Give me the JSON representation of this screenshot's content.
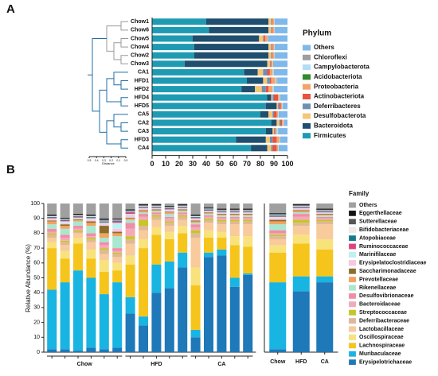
{
  "chart_data": [
    {
      "type": "barh",
      "stacked": true,
      "panel": "A",
      "legend_title": "Phylum",
      "categories": [
        "Chow1",
        "Chow6",
        "Chow5",
        "Chow4",
        "Chow2",
        "Chow3",
        "CA1",
        "HFD1",
        "HFD2",
        "HFD4",
        "HFD5",
        "CA5",
        "CA2",
        "CA3",
        "HFD3",
        "CA4"
      ],
      "xlim": [
        0,
        100
      ],
      "xticks": [
        0,
        10,
        20,
        30,
        40,
        50,
        60,
        70,
        80,
        90,
        100
      ],
      "dendrogram": {
        "xlabel": "Distance",
        "xlim": [
          0.5,
          0
        ],
        "xticks": [
          0.5,
          0.4,
          0.3,
          0.2,
          0.1,
          {
            "value": 0,
            "label": "0.0"
          }
        ]
      },
      "series": [
        {
          "name": "Firmicutes",
          "color": "#1e9bb3",
          "values": [
            40,
            42,
            30,
            31,
            31,
            24,
            68,
            70,
            66,
            85,
            84,
            80,
            88,
            84,
            62,
            73
          ]
        },
        {
          "name": "Bacteroidota",
          "color": "#1f4e6e",
          "values": [
            46,
            44,
            49,
            55,
            55,
            61,
            10,
            12,
            10,
            3,
            8,
            6,
            4,
            5,
            22,
            12
          ]
        },
        {
          "name": "Desulfobacterota",
          "color": "#f6c676",
          "values": [
            2,
            2,
            3,
            2,
            2,
            2,
            4,
            3,
            5,
            1,
            1,
            3,
            2,
            1,
            3,
            3
          ]
        },
        {
          "name": "Deferribacteres",
          "color": "#6d90b3",
          "values": [
            0.5,
            0.5,
            0.5,
            0.5,
            0.5,
            0.5,
            3,
            2,
            3,
            1,
            1,
            1,
            1,
            0.5,
            2,
            1
          ]
        },
        {
          "name": "Actinobacteriota",
          "color": "#e8533f",
          "values": [
            0.5,
            0.5,
            1,
            0.5,
            0.5,
            0.5,
            2,
            1,
            2,
            3,
            1,
            2,
            1,
            0.5,
            3,
            3
          ]
        },
        {
          "name": "Proteobacteria",
          "color": "#f4a46a",
          "values": [
            1,
            1,
            1.5,
            1,
            1,
            1,
            2,
            3,
            3,
            1,
            1,
            1,
            1,
            1,
            2,
            1
          ]
        },
        {
          "name": "Acidobacteriota",
          "color": "#2e8b2e",
          "values": [
            0,
            0,
            0,
            0,
            0,
            0,
            0,
            0,
            0,
            0,
            0,
            0,
            0,
            0,
            0,
            0
          ]
        },
        {
          "name": "Campylobacterota",
          "color": "#b3dcf5",
          "values": [
            0.5,
            0.5,
            0.5,
            0.5,
            0.5,
            0.5,
            1,
            1,
            1,
            0.5,
            0.5,
            0.5,
            0.5,
            1,
            0.5,
            0.5
          ]
        },
        {
          "name": "Chloroflexi",
          "color": "#9e9e9e",
          "values": [
            0.5,
            0.5,
            0.5,
            0.5,
            0.5,
            0.5,
            0.5,
            0.5,
            0,
            0,
            0,
            0,
            0,
            0,
            0,
            0
          ]
        },
        {
          "name": "Others",
          "color": "#7fb8ea",
          "values": [
            9,
            9,
            14,
            9,
            9,
            10,
            9.5,
            7.5,
            10,
            5.5,
            3.5,
            6.5,
            2.5,
            7,
            5.5,
            6.5
          ]
        }
      ]
    },
    {
      "type": "bar",
      "stacked": true,
      "panel": "B",
      "legend_title": "Family",
      "ylabel": "Relative Abundance (%)",
      "categories": [
        null,
        null,
        null,
        null,
        null,
        null,
        null,
        null,
        null,
        null,
        null,
        null,
        null,
        null,
        null,
        null
      ],
      "group_labels": [
        "Chow",
        "HFD",
        "CA"
      ],
      "ylim": [
        0,
        100
      ],
      "yticks": [
        0,
        10,
        20,
        30,
        40,
        50,
        60,
        70,
        80,
        90,
        100
      ],
      "series": [
        {
          "name": "Erysipelotrichaceae",
          "color": "#1f78b8",
          "values": [
            2,
            2,
            1,
            3,
            2,
            3,
            26,
            18,
            40,
            43,
            57,
            10,
            64,
            65,
            44,
            52
          ]
        },
        {
          "name": "Muribaculaceae",
          "color": "#18b4e2",
          "values": [
            40,
            45,
            54,
            47,
            37,
            44,
            11,
            6,
            19,
            18,
            10,
            5,
            3,
            4,
            6,
            1
          ]
        },
        {
          "name": "Lachnospiraceae",
          "color": "#f6c51c",
          "values": [
            28,
            16,
            18,
            13,
            15,
            8,
            22,
            46,
            20,
            15,
            13,
            30,
            10,
            8,
            22,
            18
          ]
        },
        {
          "name": "Oscillospiraceae",
          "color": "#f8e27c",
          "values": [
            4,
            5,
            4,
            6,
            8,
            5,
            6,
            6,
            5,
            5,
            5,
            12,
            5,
            4,
            6,
            7
          ]
        },
        {
          "name": "Lactobacillaceae",
          "color": "#f8ca9c",
          "values": [
            3,
            4,
            3,
            5,
            4,
            4,
            8,
            6,
            5,
            4,
            4,
            20,
            5,
            5,
            8,
            8
          ]
        },
        {
          "name": "Deferribacteraceae",
          "color": "#dfb996",
          "values": [
            2,
            2,
            1,
            2,
            3,
            2,
            3,
            3,
            2,
            2,
            2,
            3,
            2,
            2,
            2,
            2
          ]
        },
        {
          "name": "Streptococcaceae",
          "color": "#c6c624",
          "values": [
            1,
            1,
            1,
            1,
            1,
            1,
            2,
            4,
            1,
            1,
            1,
            2,
            1,
            1,
            1,
            1
          ]
        },
        {
          "name": "Bacteroidaceae",
          "color": "#f4a9bb",
          "values": [
            1,
            2,
            1,
            1,
            2,
            1,
            5,
            2,
            1,
            2,
            1,
            2,
            1,
            1,
            1,
            1
          ]
        },
        {
          "name": "Desulfovibrionaceae",
          "color": "#ef8ea7",
          "values": [
            2,
            2,
            2,
            2,
            2,
            2,
            4,
            2,
            1,
            1,
            1,
            2,
            1,
            1,
            1,
            1
          ]
        },
        {
          "name": "Rikenellaceae",
          "color": "#a9e7cf",
          "values": [
            3,
            4,
            3,
            5,
            3,
            8,
            2,
            1,
            1,
            2,
            1,
            1,
            1,
            1,
            1,
            1
          ]
        },
        {
          "name": "Prevotellaceae",
          "color": "#f3a35e",
          "values": [
            2,
            2,
            1,
            2,
            3,
            2,
            1,
            1,
            0.5,
            1,
            0.5,
            1,
            0.5,
            0.5,
            0.5,
            0.5
          ]
        },
        {
          "name": "Saccharimonadaceae",
          "color": "#8c6d2c",
          "values": [
            0.5,
            1,
            0.5,
            1,
            5,
            1,
            0.5,
            0.5,
            0.5,
            0.5,
            0.5,
            0.5,
            0.5,
            0.5,
            0.5,
            0.5
          ]
        },
        {
          "name": "Erysipelatoclostridiaceae",
          "color": "#f7c7e0",
          "values": [
            1,
            1,
            0.5,
            1,
            1,
            2,
            2,
            1,
            0.5,
            1,
            0.5,
            1,
            0.5,
            0.5,
            0.5,
            0.5
          ]
        },
        {
          "name": "Marinifilaceae",
          "color": "#bff0f2",
          "values": [
            0.5,
            1,
            0.5,
            1,
            1,
            4,
            0.5,
            0.5,
            0.5,
            0.5,
            0.5,
            0.5,
            0.5,
            0.5,
            0.5,
            0.5
          ]
        },
        {
          "name": "Ruminococcaceae",
          "color": "#e0447e",
          "values": [
            0.5,
            0.5,
            0.5,
            0.5,
            0.5,
            1,
            1,
            0.5,
            0.5,
            0.5,
            0.5,
            0.5,
            0.5,
            0.5,
            0.5,
            0.5
          ]
        },
        {
          "name": "Atopobiaceae",
          "color": "#117a8b",
          "values": [
            0.5,
            0.5,
            0.5,
            0.5,
            0.5,
            0.5,
            0.5,
            0.5,
            0.5,
            0.5,
            0.5,
            0.5,
            0.5,
            0.5,
            0.5,
            0.5
          ]
        },
        {
          "name": "Bifidobacteriaceae",
          "color": "#ececec",
          "values": [
            0.5,
            0.5,
            0.5,
            0.5,
            0.5,
            0.5,
            0.5,
            0.5,
            0.5,
            0.5,
            0.5,
            0.5,
            0.5,
            0.5,
            0.5,
            0.5
          ]
        },
        {
          "name": "Sutterellaceae",
          "color": "#555555",
          "values": [
            0.5,
            0.5,
            0.5,
            0.5,
            1,
            0.5,
            0.5,
            0.5,
            0.5,
            0.5,
            0.5,
            0.5,
            0.5,
            0.5,
            0.5,
            0.5
          ]
        },
        {
          "name": "Eggerthellaceae",
          "color": "#111111",
          "values": [
            0.5,
            0.5,
            0.5,
            0.5,
            0.5,
            0.5,
            0.5,
            0.5,
            0.5,
            0.5,
            0.5,
            0.5,
            0.5,
            0.5,
            0.5,
            0.5
          ]
        },
        {
          "name": "Others",
          "color": "#a0a0a0",
          "values": [
            7.5,
            9.5,
            7,
            7.5,
            10,
            10,
            4,
            0.5,
            0.5,
            1.5,
            0.5,
            7.5,
            2.5,
            3.5,
            3.5,
            3.5
          ]
        }
      ]
    },
    {
      "type": "bar",
      "stacked": true,
      "categories": [
        "Chow",
        "HFD",
        "CA"
      ],
      "ylim": [
        0,
        100
      ],
      "series": [
        {
          "values": [
            2,
            41,
            47
          ]
        },
        {
          "values": [
            45,
            10,
            4
          ]
        },
        {
          "values": [
            20,
            22,
            18
          ]
        },
        {
          "values": [
            5,
            6,
            7
          ]
        },
        {
          "values": [
            4,
            6,
            10
          ]
        },
        {
          "values": [
            2,
            2,
            2
          ]
        },
        {
          "values": [
            1,
            2,
            1
          ]
        },
        {
          "values": [
            1,
            2,
            1
          ]
        },
        {
          "values": [
            2,
            2,
            1
          ]
        },
        {
          "values": [
            4,
            1,
            1
          ]
        },
        {
          "values": [
            2,
            1,
            0.5
          ]
        },
        {
          "values": [
            1,
            0.5,
            0.5
          ]
        },
        {
          "values": [
            1,
            1,
            0.5
          ]
        },
        {
          "values": [
            1,
            0.5,
            0.5
          ]
        },
        {
          "values": [
            0.5,
            0.5,
            0.5
          ]
        },
        {
          "values": [
            0.5,
            0.5,
            0.5
          ]
        },
        {
          "values": [
            0.5,
            0.5,
            0.5
          ]
        },
        {
          "values": [
            0.5,
            0.5,
            0.5
          ]
        },
        {
          "values": [
            0.5,
            0.5,
            0.5
          ]
        },
        {
          "values": [
            6.5,
            0.5,
            3.5
          ]
        }
      ]
    }
  ]
}
